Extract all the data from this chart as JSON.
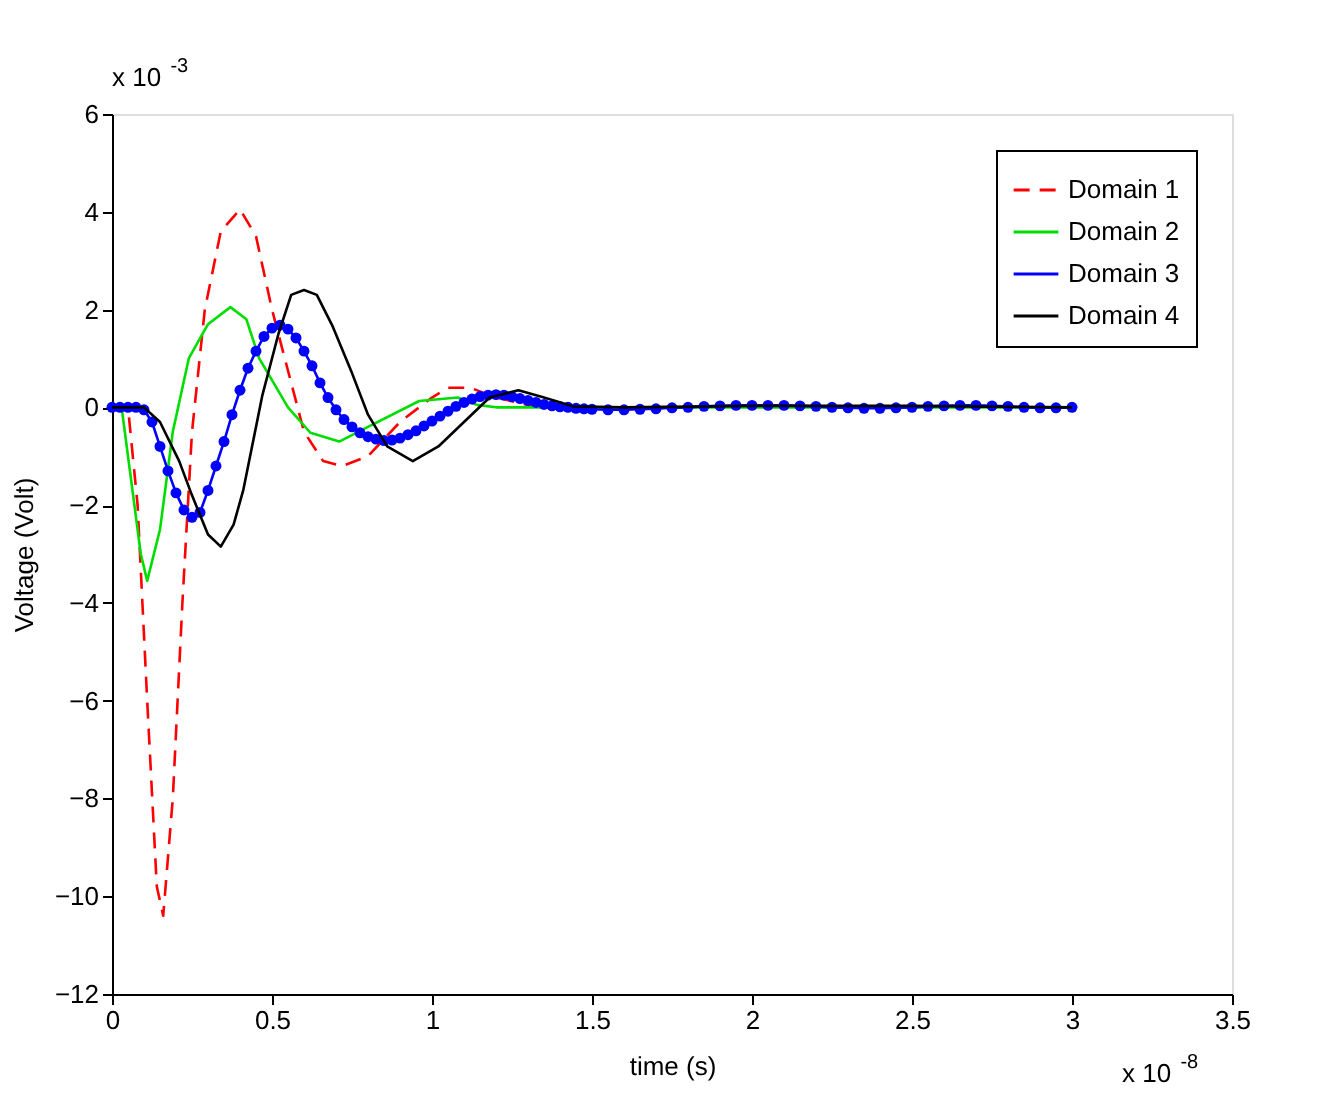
{
  "chart_data": {
    "type": "line",
    "xlabel": "time (s)",
    "ylabel": "Voltage (Volt)",
    "annotations": [
      "x 10$^{-3}$",
      "x 10$^{-8}$"
    ],
    "xlim": [
      0,
      3.5
    ],
    "xticks": [
      {
        "value": 0,
        "label": "0"
      },
      0.5,
      {
        "value": 1,
        "label": "1"
      },
      1.5,
      {
        "value": 2,
        "label": "2"
      },
      2.5,
      {
        "value": 3,
        "label": "3"
      },
      3.5
    ],
    "ylim": [
      -12,
      6
    ],
    "yticks": [
      -12,
      -10,
      -8,
      -6,
      -4,
      -2,
      0,
      2,
      4,
      6
    ],
    "grid": false,
    "legend": "top right",
    "series": [
      {
        "name": "Domain 1",
        "color": "#ff0000",
        "line_style": "dashed",
        "marker": "none",
        "x": [
          0,
          0.05,
          0.08,
          0.11,
          0.14,
          0.16,
          0.19,
          0.22,
          0.25,
          0.29,
          0.34,
          0.4,
          0.45,
          0.5,
          0.56,
          0.6,
          0.66,
          0.72,
          0.8,
          0.9,
          1.0,
          1.05,
          1.12,
          1.2,
          1.3,
          1.4,
          1.5
        ],
        "values": [
          0,
          0,
          -2,
          -6,
          -9.8,
          -10.4,
          -8,
          -4,
          -0.5,
          2,
          3.6,
          4.05,
          3.5,
          2,
          0.5,
          -0.5,
          -1.1,
          -1.2,
          -1,
          -0.3,
          0.2,
          0.4,
          0.4,
          0.2,
          0.05,
          0,
          0
        ]
      },
      {
        "name": "Domain 2",
        "color": "#00dd00",
        "line_style": "solid",
        "marker": "none",
        "x": [
          0,
          0.03,
          0.06,
          0.09,
          0.11,
          0.15,
          0.19,
          0.24,
          0.3,
          0.37,
          0.42,
          0.46,
          0.55,
          0.62,
          0.71,
          0.8,
          0.96,
          1.08,
          1.14,
          1.2,
          1.3,
          1.5,
          2.0,
          2.5,
          3.0
        ],
        "values": [
          0,
          0,
          -1.5,
          -3,
          -3.55,
          -2.5,
          -0.5,
          1,
          1.7,
          2.05,
          1.8,
          1,
          0,
          -0.52,
          -0.7,
          -0.4,
          0.13,
          0.2,
          0.05,
          0,
          0,
          0,
          0,
          0,
          0
        ]
      },
      {
        "name": "Domain 3",
        "color": "#0000ff",
        "line_style": "solid",
        "marker": "circle",
        "x": [
          0,
          0.025,
          0.05,
          0.075,
          0.1,
          0.125,
          0.15,
          0.175,
          0.2,
          0.225,
          0.25,
          0.275,
          0.3,
          0.325,
          0.35,
          0.375,
          0.4,
          0.425,
          0.45,
          0.475,
          0.5,
          0.525,
          0.55,
          0.575,
          0.6,
          0.625,
          0.65,
          0.675,
          0.7,
          0.725,
          0.75,
          0.775,
          0.8,
          0.825,
          0.85,
          0.875,
          0.9,
          0.925,
          0.95,
          0.975,
          1.0,
          1.025,
          1.05,
          1.075,
          1.1,
          1.125,
          1.15,
          1.175,
          1.2,
          1.225,
          1.25,
          1.275,
          1.3,
          1.325,
          1.35,
          1.375,
          1.4,
          1.425,
          1.45,
          1.475,
          1.5,
          1.55,
          1.6,
          1.65,
          1.7,
          1.75,
          1.8,
          1.85,
          1.9,
          1.95,
          2.0,
          2.05,
          2.1,
          2.15,
          2.2,
          2.25,
          2.3,
          2.35,
          2.4,
          2.45,
          2.5,
          2.55,
          2.6,
          2.65,
          2.7,
          2.75,
          2.8,
          2.85,
          2.9,
          2.95,
          3.0
        ],
        "values": [
          0,
          0,
          0,
          0,
          -0.05,
          -0.3,
          -0.8,
          -1.3,
          -1.75,
          -2.1,
          -2.25,
          -2.15,
          -1.7,
          -1.2,
          -0.7,
          -0.15,
          0.35,
          0.8,
          1.15,
          1.45,
          1.62,
          1.68,
          1.6,
          1.42,
          1.15,
          0.85,
          0.5,
          0.2,
          -0.05,
          -0.25,
          -0.4,
          -0.52,
          -0.6,
          -0.65,
          -0.68,
          -0.67,
          -0.63,
          -0.56,
          -0.48,
          -0.38,
          -0.28,
          -0.18,
          -0.08,
          0.02,
          0.1,
          0.17,
          0.22,
          0.25,
          0.26,
          0.25,
          0.22,
          0.18,
          0.14,
          0.1,
          0.06,
          0.03,
          0.01,
          0,
          -0.02,
          -0.03,
          -0.04,
          -0.05,
          -0.05,
          -0.04,
          -0.03,
          -0.01,
          0,
          0.02,
          0.03,
          0.04,
          0.04,
          0.04,
          0.04,
          0.03,
          0.02,
          0,
          -0.01,
          -0.02,
          -0.02,
          -0.01,
          0,
          0.02,
          0.03,
          0.04,
          0.04,
          0.03,
          0.02,
          0,
          -0.01,
          -0.01,
          0
        ]
      },
      {
        "name": "Domain 4",
        "color": "#000000",
        "line_style": "solid",
        "marker": "none",
        "x": [
          0,
          0.1,
          0.15,
          0.21,
          0.25,
          0.3,
          0.34,
          0.38,
          0.41,
          0.47,
          0.52,
          0.56,
          0.6,
          0.64,
          0.69,
          0.75,
          0.8,
          0.86,
          0.94,
          1.02,
          1.1,
          1.18,
          1.27,
          1.35,
          1.44,
          1.6,
          2.0,
          2.5,
          3.0
        ],
        "values": [
          0,
          0,
          -0.3,
          -1.1,
          -1.8,
          -2.6,
          -2.85,
          -2.4,
          -1.7,
          0.25,
          1.5,
          2.3,
          2.4,
          2.3,
          1.65,
          0.7,
          -0.15,
          -0.8,
          -1.1,
          -0.8,
          -0.3,
          0.2,
          0.35,
          0.2,
          0.02,
          0,
          0.03,
          0.03,
          0
        ]
      }
    ]
  }
}
